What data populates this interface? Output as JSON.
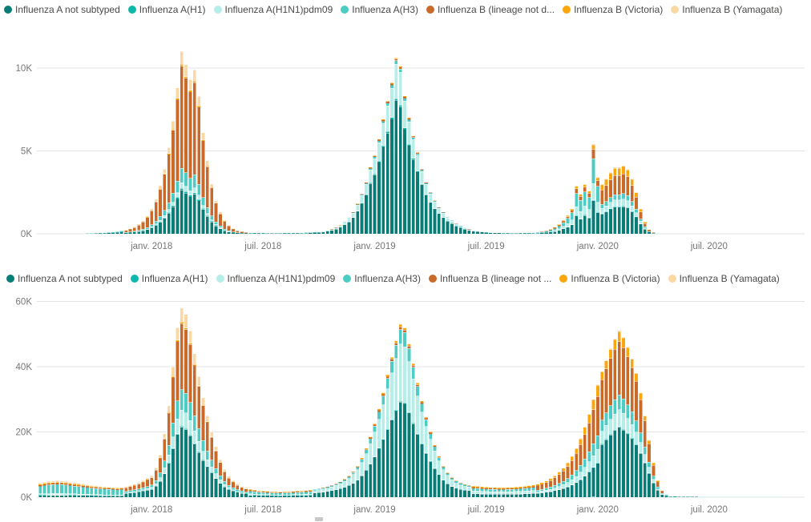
{
  "page": {
    "background": "#FFFFFF",
    "scroll_thumb_color": "#C8C8C8"
  },
  "colors": {
    "gridline": "#E3E3E3",
    "axis_label_text": "#767676",
    "legend_text": "#4A4A49"
  },
  "chart_data": [
    {
      "type": "bar",
      "stacked": true,
      "title": "",
      "xlabel": "",
      "ylabel": "",
      "grid": true,
      "legend_position": "top",
      "x_axis": {
        "unit": "week",
        "start_date": "2017-07-03",
        "step_days": 7,
        "n_weeks": 174,
        "tick_labels": [
          "janv. 2018",
          "juil. 2018",
          "janv. 2019",
          "juil. 2019",
          "janv. 2020",
          "juil. 2020"
        ],
        "tick_week_index": [
          26,
          52,
          78,
          104,
          130,
          156
        ]
      },
      "y_axis": {
        "tick_labels": [
          "0K",
          "5K",
          "10K"
        ],
        "tick_values": [
          0,
          5000,
          10000
        ],
        "ylim": [
          0,
          11300
        ]
      },
      "legend_labels": [
        "Influenza A not subtyped",
        "Influenza A(H1)",
        "Influenza A(H1N1)pdm09",
        "Influenza A(H3)",
        "Influenza B (lineage not d...",
        "Influenza B (Victoria)",
        "Influenza B (Yamagata)"
      ],
      "series": [
        {
          "key": "a_not_subtyped",
          "name": "Influenza A not subtyped",
          "color": "#087C76"
        },
        {
          "key": "a_h1",
          "name": "Influenza A(H1)",
          "color": "#0CB8A9"
        },
        {
          "key": "a_h1n1pdm09",
          "name": "Influenza A(H1N1)pdm09",
          "color": "#B5EDE9"
        },
        {
          "key": "a_h3",
          "name": "Influenza A(H3)",
          "color": "#4CCCC3"
        },
        {
          "key": "b_lineage_nd",
          "name": "Influenza B (lineage not d...",
          "color": "#C9692A"
        },
        {
          "key": "b_victoria",
          "name": "Influenza B (Victoria)",
          "color": "#FBA60A"
        },
        {
          "key": "b_yamagata",
          "name": "Influenza B (Yamagata)",
          "color": "#FAD8A4"
        }
      ],
      "weekly_totals": [
        0,
        0,
        0,
        0,
        0,
        0,
        0,
        0,
        10,
        10,
        10,
        20,
        20,
        30,
        40,
        60,
        80,
        100,
        130,
        170,
        220,
        300,
        420,
        570,
        780,
        1060,
        1500,
        2100,
        2900,
        3900,
        5200,
        6800,
        8800,
        11000,
        10200,
        9300,
        9900,
        8300,
        6100,
        4400,
        3000,
        2000,
        1300,
        800,
        500,
        300,
        200,
        120,
        80,
        60,
        50,
        40,
        40,
        30,
        30,
        30,
        30,
        40,
        40,
        50,
        50,
        60,
        70,
        80,
        90,
        110,
        150,
        200,
        280,
        380,
        520,
        700,
        950,
        1300,
        1800,
        2400,
        3100,
        4000,
        4700,
        5700,
        6900,
        8000,
        9100,
        10600,
        10100,
        8300,
        7000,
        5900,
        4900,
        3900,
        3100,
        2500,
        2000,
        1600,
        1300,
        1000,
        800,
        620,
        480,
        370,
        280,
        210,
        160,
        120,
        90,
        70,
        60,
        50,
        40,
        40,
        30,
        30,
        40,
        40,
        50,
        60,
        80,
        120,
        180,
        260,
        380,
        550,
        800,
        1100,
        1500,
        2900,
        2400,
        3000,
        2600,
        5400,
        3400,
        3000,
        3300,
        3700,
        4000,
        4000,
        4100,
        3900,
        3300,
        2500,
        1500,
        700,
        250,
        80,
        30,
        10,
        0,
        0,
        0,
        0,
        0,
        0,
        0,
        0,
        0,
        0,
        0,
        0,
        0,
        0,
        0,
        0,
        0,
        0,
        0,
        0,
        0,
        0,
        0,
        0,
        0,
        0,
        0,
        0
      ],
      "mix_phases": [
        {
          "from": 0,
          "to": 19,
          "fractions": [
            0.6,
            0,
            0,
            0.4,
            0,
            0,
            0
          ]
        },
        {
          "from": 20,
          "to": 48,
          "fractions": [
            0.24,
            0.01,
            0.03,
            0.08,
            0.56,
            0.01,
            0.07
          ]
        },
        {
          "from": 49,
          "to": 63,
          "fractions": [
            0.5,
            0,
            0.2,
            0.3,
            0,
            0,
            0
          ]
        },
        {
          "from": 64,
          "to": 108,
          "fractions": [
            0.76,
            0.01,
            0.195,
            0.02,
            0.01,
            0.005,
            0
          ]
        },
        {
          "from": 109,
          "to": 115,
          "fractions": [
            0.5,
            0,
            0.2,
            0.3,
            0,
            0,
            0
          ]
        },
        {
          "from": 116,
          "to": 130,
          "fractions": [
            0.37,
            0.01,
            0.18,
            0.28,
            0.1,
            0.05,
            0.01
          ]
        },
        {
          "from": 131,
          "to": 145,
          "fractions": [
            0.4,
            0.01,
            0.1,
            0.08,
            0.29,
            0.11,
            0.01
          ]
        },
        {
          "from": 146,
          "to": 173,
          "fractions": [
            0.6,
            0,
            0,
            0.4,
            0,
            0,
            0
          ]
        }
      ]
    },
    {
      "type": "bar",
      "stacked": true,
      "title": "",
      "xlabel": "",
      "ylabel": "",
      "grid": true,
      "legend_position": "top",
      "x_axis": {
        "unit": "week",
        "start_date": "2017-07-03",
        "step_days": 7,
        "n_weeks": 174,
        "tick_labels": [
          "janv. 2018",
          "juil. 2018",
          "janv. 2019",
          "juil. 2019",
          "janv. 2020",
          "juil. 2020"
        ],
        "tick_week_index": [
          26,
          52,
          78,
          104,
          130,
          156
        ]
      },
      "y_axis": {
        "tick_labels": [
          "0K",
          "20K",
          "40K",
          "60K"
        ],
        "tick_values": [
          0,
          20000,
          40000,
          60000
        ],
        "ylim": [
          0,
          62000
        ]
      },
      "legend_labels": [
        "Influenza A not subtyped",
        "Influenza A(H1)",
        "Influenza A(H1N1)pdm09",
        "Influenza A(H3)",
        "Influenza B (lineage not ...",
        "Influenza B (Victoria)",
        "Influenza B (Yamagata)"
      ],
      "series": [
        {
          "key": "a_not_subtyped",
          "name": "Influenza A not subtyped",
          "color": "#087C76"
        },
        {
          "key": "a_h1",
          "name": "Influenza A(H1)",
          "color": "#0CB8A9"
        },
        {
          "key": "a_h1n1pdm09",
          "name": "Influenza A(H1N1)pdm09",
          "color": "#B5EDE9"
        },
        {
          "key": "a_h3",
          "name": "Influenza A(H3)",
          "color": "#4CCCC3"
        },
        {
          "key": "b_lineage_nd",
          "name": "Influenza B (lineage not ...",
          "color": "#C9692A"
        },
        {
          "key": "b_victoria",
          "name": "Influenza B (Victoria)",
          "color": "#FBA60A"
        },
        {
          "key": "b_yamagata",
          "name": "Influenza B (Yamagata)",
          "color": "#FAD8A4"
        }
      ],
      "weekly_totals": [
        4300,
        4600,
        4800,
        5000,
        5100,
        5000,
        4800,
        4600,
        4400,
        4200,
        4000,
        3800,
        3600,
        3400,
        3300,
        3200,
        3100,
        3000,
        2900,
        3000,
        3200,
        3500,
        3900,
        4400,
        5000,
        5800,
        6500,
        9000,
        13000,
        19500,
        28000,
        40000,
        52000,
        58000,
        56000,
        51000,
        44000,
        37000,
        30500,
        25000,
        20000,
        15500,
        11500,
        8500,
        6400,
        5000,
        4000,
        3300,
        2800,
        2400,
        2200,
        2000,
        1900,
        1800,
        1700,
        1700,
        1600,
        1700,
        1700,
        1800,
        1900,
        2000,
        2100,
        2200,
        2400,
        2600,
        2900,
        3200,
        3600,
        4100,
        4700,
        5500,
        6500,
        7800,
        9500,
        12000,
        15000,
        18500,
        22500,
        27000,
        32000,
        37500,
        43000,
        48000,
        53000,
        52000,
        47000,
        41000,
        35000,
        29500,
        24500,
        20000,
        16000,
        12500,
        9500,
        7500,
        6000,
        5000,
        4300,
        3900,
        3600,
        3400,
        3300,
        3200,
        3100,
        3000,
        3000,
        2900,
        2900,
        3000,
        3000,
        3100,
        3200,
        3300,
        3500,
        3700,
        4000,
        4400,
        5000,
        5700,
        6600,
        7700,
        9000,
        10500,
        12500,
        15000,
        18000,
        21500,
        25500,
        30000,
        34500,
        38500,
        42000,
        45500,
        48500,
        51000,
        49000,
        46000,
        42500,
        38000,
        32000,
        25000,
        17500,
        10500,
        5000,
        2000,
        700,
        300,
        200,
        150,
        150,
        140,
        130,
        130,
        120,
        120,
        110,
        110,
        100,
        100,
        100,
        100,
        100,
        100,
        100,
        100,
        100,
        100,
        100,
        100,
        100,
        100,
        100,
        100
      ],
      "mix_phases": [
        {
          "from": 0,
          "to": 19,
          "fractions": [
            0.12,
            0.01,
            0.1,
            0.55,
            0.08,
            0.04,
            0.1
          ]
        },
        {
          "from": 20,
          "to": 48,
          "fractions": [
            0.37,
            0.005,
            0.086,
            0.107,
            0.35,
            0.007,
            0.075
          ]
        },
        {
          "from": 49,
          "to": 63,
          "fractions": [
            0.25,
            0.01,
            0.16,
            0.35,
            0.12,
            0.06,
            0.05
          ]
        },
        {
          "from": 64,
          "to": 100,
          "fractions": [
            0.55,
            0.005,
            0.33,
            0.085,
            0.015,
            0.013,
            0.002
          ]
        },
        {
          "from": 101,
          "to": 115,
          "fractions": [
            0.3,
            0.01,
            0.25,
            0.25,
            0.08,
            0.1,
            0.01
          ]
        },
        {
          "from": 116,
          "to": 130,
          "fractions": [
            0.3,
            0.005,
            0.12,
            0.12,
            0.35,
            0.1,
            0.005
          ]
        },
        {
          "from": 131,
          "to": 145,
          "fractions": [
            0.42,
            0.005,
            0.1,
            0.09,
            0.32,
            0.06,
            0.005
          ]
        },
        {
          "from": 146,
          "to": 173,
          "fractions": [
            0.5,
            0,
            0.2,
            0.3,
            0,
            0,
            0
          ]
        }
      ]
    }
  ]
}
